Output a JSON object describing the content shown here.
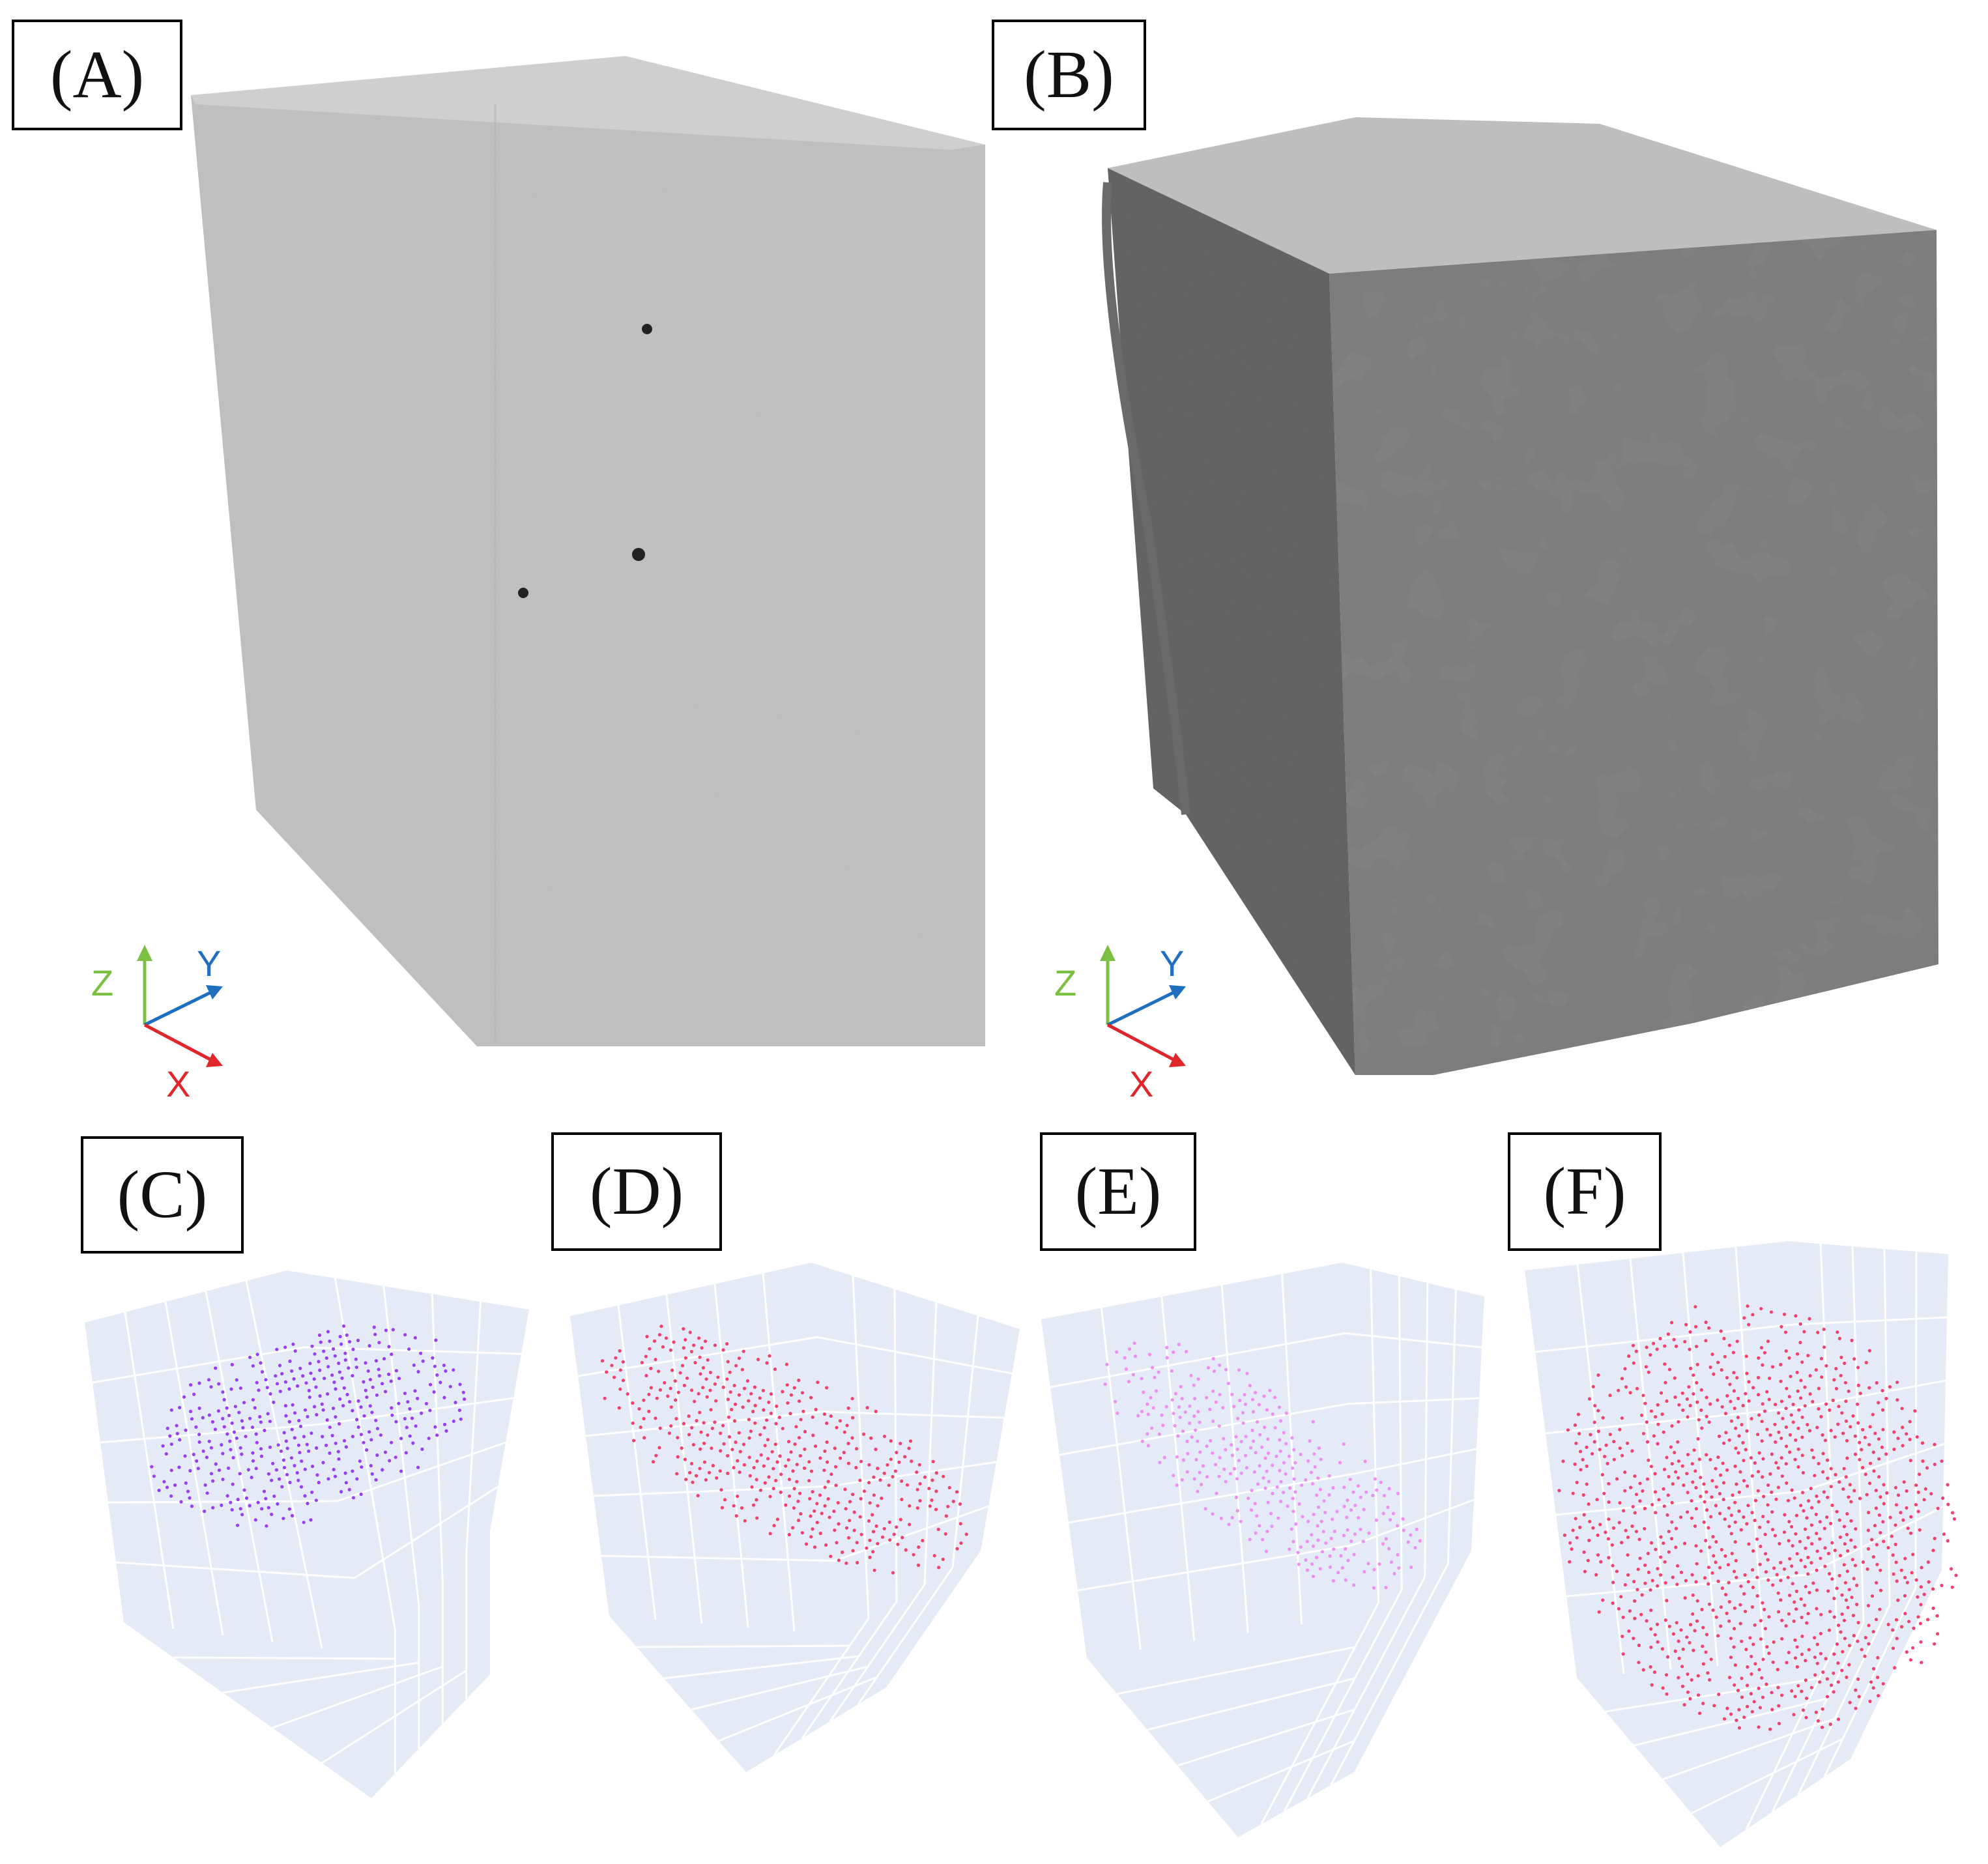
{
  "figure": {
    "panels": {
      "A": {
        "label": "(A)"
      },
      "B": {
        "label": "(B)"
      },
      "C": {
        "label": "(C)"
      },
      "D": {
        "label": "(D)"
      },
      "E": {
        "label": "(E)"
      },
      "F": {
        "label": "(F)"
      }
    },
    "axes_triad": {
      "z": "Z",
      "y": "Y",
      "x": "X"
    },
    "colors": {
      "x_axis": "#e0262b",
      "y_axis": "#1f6fbf",
      "z_axis": "#7cc043",
      "cloud_C": "#9a3df0",
      "cloud_D": "#f0416e",
      "cloud_E": "#ee8ff0",
      "cloud_F": "#f0416e",
      "box_background": "#e4eaf6",
      "grid_line": "#ffffff"
    }
  }
}
